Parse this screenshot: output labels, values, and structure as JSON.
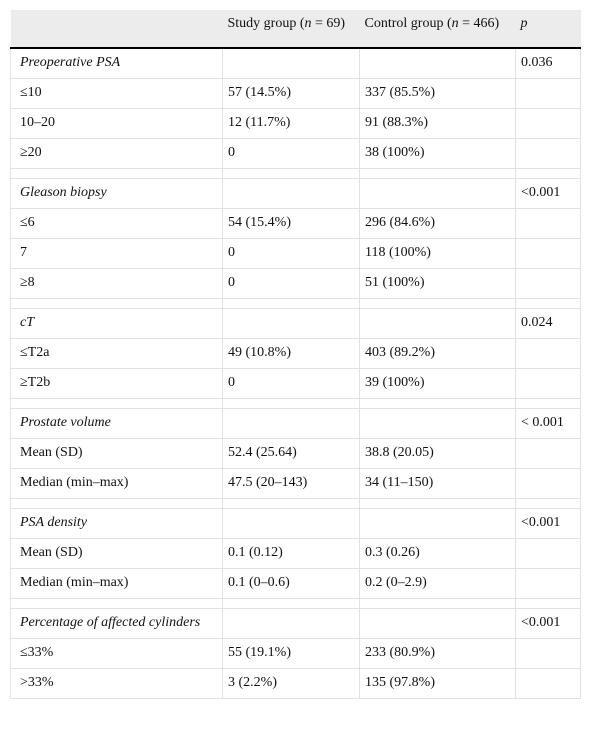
{
  "table": {
    "header": {
      "study": [
        "Study group (",
        "n",
        " = 69)"
      ],
      "control": [
        "Control group (",
        "n",
        " = 466)"
      ],
      "p": "p"
    },
    "sections": [
      {
        "title": "Preoperative PSA",
        "p": "0.036",
        "rows": [
          [
            "≤10",
            "57 (14.5%)",
            "337 (85.5%)"
          ],
          [
            "10–20",
            "12 (11.7%)",
            "91 (88.3%)"
          ],
          [
            "≥20",
            "0",
            "38 (100%)"
          ]
        ]
      },
      {
        "title": "Gleason biopsy",
        "p": "<0.001",
        "rows": [
          [
            "≤6",
            "54 (15.4%)",
            "296 (84.6%)"
          ],
          [
            "7",
            "0",
            "118 (100%)"
          ],
          [
            "≥8",
            "0",
            "51 (100%)"
          ]
        ]
      },
      {
        "title": "cT",
        "p": "0.024",
        "rows": [
          [
            "≤T2a",
            "49 (10.8%)",
            "403 (89.2%)"
          ],
          [
            "≥T2b",
            "0",
            "39 (100%)"
          ]
        ]
      },
      {
        "title": "Prostate volume",
        "p": "< 0.001",
        "rows": [
          [
            "Mean (SD)",
            "52.4 (25.64)",
            "38.8 (20.05)"
          ],
          [
            "Median (min–max)",
            "47.5 (20–143)",
            "34 (11–150)"
          ]
        ]
      },
      {
        "title": "PSA density",
        "p": "<0.001",
        "rows": [
          [
            "Mean (SD)",
            "0.1 (0.12)",
            "0.3 (0.26)"
          ],
          [
            "Median (min–max)",
            "0.1 (0–0.6)",
            "0.2 (0–2.9)"
          ]
        ]
      },
      {
        "title": "Percentage of affected cylinders",
        "p": "<0.001",
        "rows": [
          [
            "≤33%",
            "55 (19.1%)",
            "233 (80.9%)"
          ],
          [
            ">33%",
            "3 (2.2%)",
            "135 (97.8%)"
          ]
        ]
      }
    ]
  }
}
